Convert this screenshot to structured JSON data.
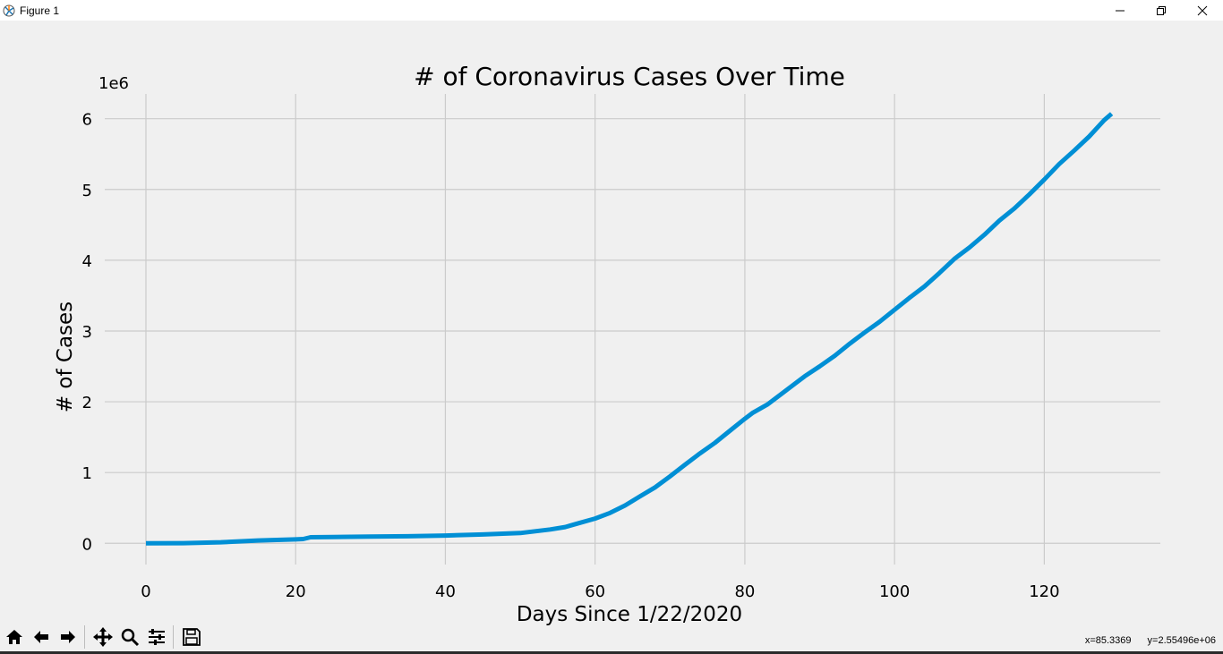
{
  "window": {
    "title": "Figure 1",
    "icons": {
      "app": "matplotlib-icon",
      "minimize": "minimize-icon",
      "maximize": "restore-icon",
      "close": "close-icon"
    }
  },
  "chart_data": {
    "type": "line",
    "title": "# of Coronavirus Cases Over Time",
    "xlabel": "Days Since 1/22/2020",
    "ylabel": "# of Cases",
    "y_offset_text": "1e6",
    "xlim": [
      -5.5,
      135.5
    ],
    "ylim": [
      -0.3,
      6.35
    ],
    "xticks": [
      0,
      20,
      40,
      60,
      80,
      100,
      120
    ],
    "yticks": [
      0,
      1,
      2,
      3,
      4,
      5,
      6
    ],
    "xtick_labels": [
      "0",
      "20",
      "40",
      "60",
      "80",
      "100",
      "120"
    ],
    "ytick_labels": [
      "0",
      "1",
      "2",
      "3",
      "4",
      "5",
      "6"
    ],
    "grid": true,
    "line_color": "#008fd5",
    "series": [
      {
        "x": [
          0,
          5,
          10,
          15,
          20,
          21,
          22,
          25,
          30,
          35,
          40,
          45,
          50,
          52,
          54,
          56,
          58,
          60,
          62,
          64,
          66,
          68,
          70,
          72,
          74,
          76,
          78,
          80,
          81,
          83,
          85,
          88,
          90,
          92,
          94,
          96,
          98,
          100,
          102,
          104,
          106,
          108,
          110,
          112,
          114,
          116,
          118,
          120,
          122,
          124,
          126,
          128,
          129
        ],
        "y": [
          0,
          0.002,
          0.015,
          0.04,
          0.055,
          0.06,
          0.085,
          0.09,
          0.095,
          0.1,
          0.11,
          0.125,
          0.145,
          0.17,
          0.195,
          0.23,
          0.29,
          0.35,
          0.43,
          0.535,
          0.665,
          0.79,
          0.945,
          1.11,
          1.27,
          1.42,
          1.59,
          1.76,
          1.84,
          1.96,
          2.12,
          2.36,
          2.5,
          2.65,
          2.82,
          2.98,
          3.13,
          3.3,
          3.47,
          3.63,
          3.82,
          4.02,
          4.18,
          4.36,
          4.56,
          4.73,
          4.93,
          5.14,
          5.36,
          5.55,
          5.75,
          5.98,
          6.07
        ]
      }
    ]
  },
  "toolbar": {
    "buttons": [
      {
        "name": "home-button",
        "icon": "home-icon"
      },
      {
        "name": "back-button",
        "icon": "arrow-left-icon"
      },
      {
        "name": "forward-button",
        "icon": "arrow-right-icon"
      },
      {
        "name": "pan-button",
        "icon": "move-icon"
      },
      {
        "name": "zoom-button",
        "icon": "magnifier-icon"
      },
      {
        "name": "configure-subplots-button",
        "icon": "sliders-icon"
      },
      {
        "name": "save-button",
        "icon": "floppy-disk-icon"
      }
    ]
  },
  "status": {
    "x": "x=85.3369",
    "y": "y=2.55496e+06"
  }
}
